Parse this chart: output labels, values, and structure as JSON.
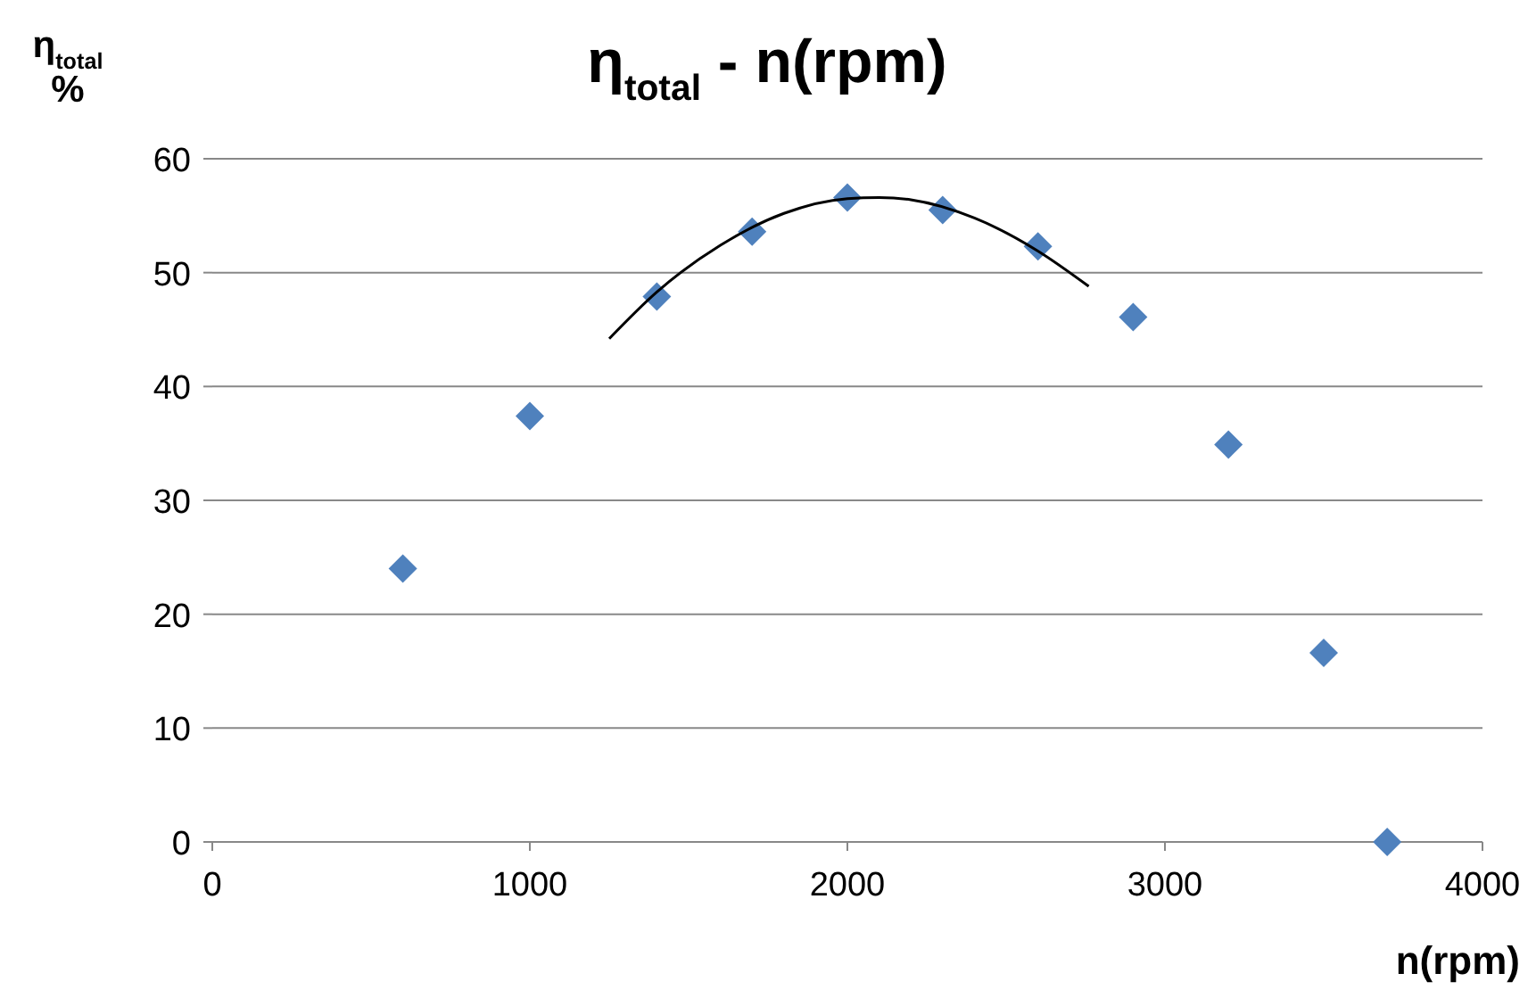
{
  "chart_data": {
    "type": "scatter",
    "title": "η$_{total}$ - n(rpm)",
    "xlabel": "n(rpm)",
    "ylabel": "η$_{total}$\n%",
    "xlim": [
      0,
      4000
    ],
    "xticks": [
      0,
      1000,
      2000,
      3000,
      4000
    ],
    "ylim": [
      0,
      60
    ],
    "yticks": [
      0,
      10,
      20,
      30,
      40,
      50,
      60
    ],
    "grid": "y",
    "marker": "diamond",
    "series": [
      {
        "color": "#4f81bd",
        "x": [
          600,
          1000,
          1400,
          1700,
          2000,
          2300,
          2600,
          2900,
          3200,
          3500,
          3700
        ],
        "values": [
          24.0,
          37.4,
          47.9,
          53.6,
          56.6,
          55.5,
          52.3,
          46.1,
          34.9,
          16.6,
          0
        ]
      },
      {
        "type": "line",
        "color": "#000000",
        "marker": "none",
        "line_style": "solid",
        "x": [
          1250,
          1400,
          1600,
          1800,
          2000,
          2100,
          2200,
          2400,
          2600,
          2760
        ],
        "values": [
          44.2,
          48.3,
          52.4,
          55.2,
          56.5,
          56.6,
          56.4,
          54.8,
          51.9,
          48.8
        ]
      }
    ]
  }
}
